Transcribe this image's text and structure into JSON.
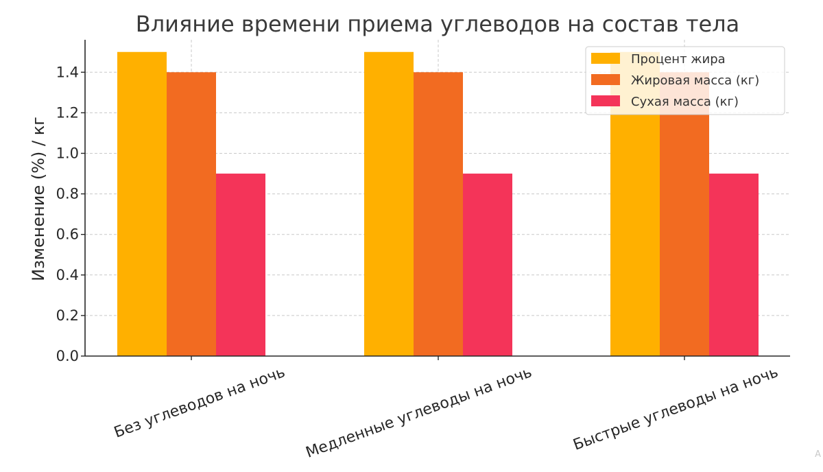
{
  "chart_data": {
    "type": "bar",
    "title": "Влияние времени приема углеводов на состав тела",
    "xlabel": "",
    "ylabel": "Изменение (%) / кг",
    "categories": [
      "Без углеводов на ночь",
      "Медленные углеводы на ночь",
      "Быстрые углеводы на ночь"
    ],
    "series": [
      {
        "name": "Процент жира",
        "color": "#FFB000",
        "values": [
          1.5,
          1.5,
          1.5
        ]
      },
      {
        "name": "Жировая масса (кг)",
        "color": "#F26B21",
        "values": [
          1.4,
          1.4,
          1.4
        ]
      },
      {
        "name": "Сухая масса (кг)",
        "color": "#F43459",
        "values": [
          0.9,
          0.9,
          0.9
        ]
      }
    ],
    "ylim": [
      0,
      1.56
    ],
    "yticks": [
      "0.0",
      "0.2",
      "0.4",
      "0.6",
      "0.8",
      "1.0",
      "1.2",
      "1.4"
    ],
    "grid": true,
    "legend_position": "top-right"
  },
  "watermark": "A"
}
